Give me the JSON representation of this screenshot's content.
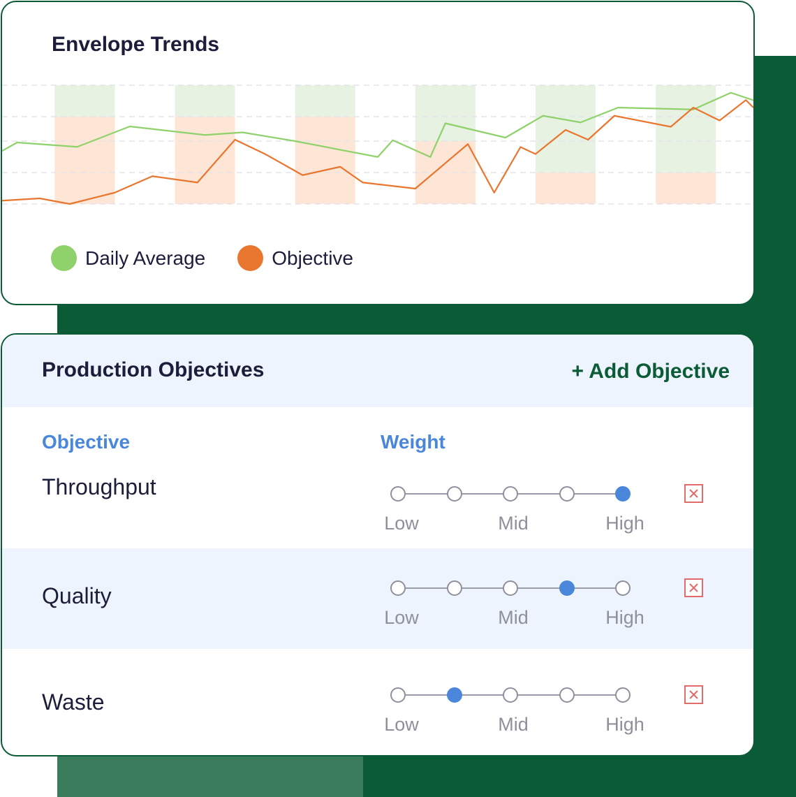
{
  "colors": {
    "brand_green": "#0b5b37",
    "daily_average": "#8fd16a",
    "objective": "#e8762f",
    "accent_blue": "#4a86d9",
    "delete_red": "#e36b6b"
  },
  "chart_card": {
    "title": "Envelope Trends",
    "legend": [
      {
        "label": "Daily Average",
        "color": "#8fd16a"
      },
      {
        "label": "Objective",
        "color": "#e8762f"
      }
    ]
  },
  "chart_data": {
    "type": "line",
    "title": "Envelope Trends",
    "grid": true,
    "legend_position": "bottom-left",
    "series": [
      {
        "name": "Daily Average",
        "color": "#8fd16a",
        "values": [
          [
            0,
            3.04
          ],
          [
            2,
            3.52
          ],
          [
            10,
            3.27
          ],
          [
            17,
            4.44
          ],
          [
            27,
            3.95
          ],
          [
            32,
            4.1
          ],
          [
            39,
            3.6
          ],
          [
            50,
            2.69
          ],
          [
            52,
            3.65
          ],
          [
            57,
            2.69
          ],
          [
            59,
            4.62
          ],
          [
            67,
            3.8
          ],
          [
            72,
            5.05
          ],
          [
            77,
            4.67
          ],
          [
            82,
            5.52
          ],
          [
            92,
            5.41
          ],
          [
            97,
            6.37
          ],
          [
            100,
            5.94
          ]
        ]
      },
      {
        "name": "Objective",
        "color": "#e8762f",
        "values": [
          [
            0,
            0.19
          ],
          [
            5,
            0.32
          ],
          [
            9,
            0
          ],
          [
            15,
            0.65
          ],
          [
            20,
            1.59
          ],
          [
            26,
            1.23
          ],
          [
            31,
            3.68
          ],
          [
            35,
            2.86
          ],
          [
            40,
            1.65
          ],
          [
            45,
            2.13
          ],
          [
            48,
            1.23
          ],
          [
            55,
            0.88
          ],
          [
            62,
            3.43
          ],
          [
            65.5,
            0.65
          ],
          [
            69,
            3.26
          ],
          [
            71,
            2.86
          ],
          [
            75,
            4.24
          ],
          [
            78,
            3.68
          ],
          [
            81.5,
            5.05
          ],
          [
            89,
            4.42
          ],
          [
            92,
            5.52
          ],
          [
            95.5,
            4.78
          ],
          [
            99,
            5.95
          ],
          [
            100,
            5.52
          ]
        ]
      }
    ],
    "bands": [
      {
        "x0": 7,
        "x1": 15,
        "ranges": [
          {
            "color": "green",
            "y0": 5.0,
            "y1": 6.8
          },
          {
            "color": "orange",
            "y0": 0,
            "y1": 5.0
          }
        ]
      },
      {
        "x0": 23,
        "x1": 31,
        "ranges": [
          {
            "color": "green",
            "y0": 5.0,
            "y1": 6.8
          },
          {
            "color": "orange",
            "y0": 0,
            "y1": 5.0
          }
        ]
      },
      {
        "x0": 39,
        "x1": 47,
        "ranges": [
          {
            "color": "green",
            "y0": 5.0,
            "y1": 6.8
          },
          {
            "color": "orange",
            "y0": 0,
            "y1": 5.0
          }
        ]
      },
      {
        "x0": 55,
        "x1": 63,
        "ranges": [
          {
            "color": "green",
            "y0": 3.6,
            "y1": 6.8
          },
          {
            "color": "orange",
            "y0": 0,
            "y1": 3.6
          }
        ]
      },
      {
        "x0": 71,
        "x1": 79,
        "ranges": [
          {
            "color": "green",
            "y0": 1.8,
            "y1": 6.8
          },
          {
            "color": "orange",
            "y0": 0,
            "y1": 1.8
          }
        ]
      },
      {
        "x0": 87,
        "x1": 95,
        "ranges": [
          {
            "color": "green",
            "y0": 1.8,
            "y1": 6.8
          },
          {
            "color": "orange",
            "y0": 0,
            "y1": 1.8
          }
        ]
      }
    ],
    "xlim": [
      0,
      100
    ],
    "ylim": [
      0,
      6.8
    ],
    "gridlines": [
      0,
      1.8,
      3.6,
      5.0,
      6.8
    ]
  },
  "objectives_card": {
    "title": "Production Objectives",
    "add_label": "+ Add Objective",
    "columns": {
      "objective": "Objective",
      "weight": "Weight"
    },
    "weight_labels": [
      "Low",
      "Mid",
      "High"
    ],
    "rows": [
      {
        "name": "Throughput",
        "weight_level": 5,
        "weight_max": 5
      },
      {
        "name": "Quality",
        "weight_level": 4,
        "weight_max": 5
      },
      {
        "name": "Waste",
        "weight_level": 2,
        "weight_max": 5
      }
    ],
    "delete_icon": "close-icon"
  }
}
